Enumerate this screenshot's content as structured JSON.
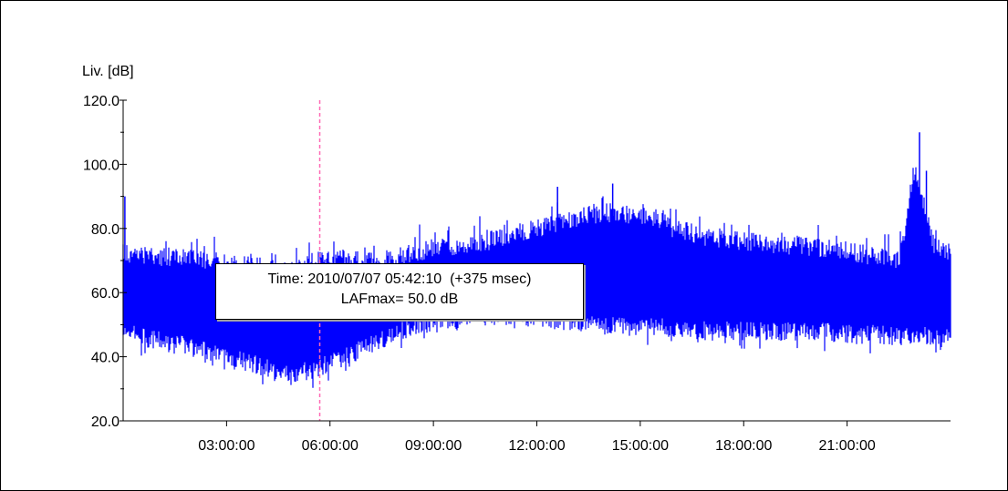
{
  "chart_data": {
    "type": "line",
    "title": "",
    "ylabel": "Liv. [dB]",
    "xlabel": "",
    "ylim": [
      20,
      120
    ],
    "yticks": [
      "20.0",
      "40.0",
      "60.0",
      "80.0",
      "100.0",
      "120.0"
    ],
    "xlim": [
      "00:00:00",
      "24:00:00"
    ],
    "xticks": [
      "03:00:00",
      "06:00:00",
      "09:00:00",
      "12:00:00",
      "15:00:00",
      "18:00:00",
      "21:00:00"
    ],
    "grid": false,
    "series": [
      {
        "color": "#0000ff",
        "style": "min-max envelope (dense trace)",
        "x_hours": [
          0.0,
          1.0,
          2.0,
          3.0,
          4.0,
          4.5,
          5.0,
          5.5,
          6.0,
          7.0,
          8.0,
          9.0,
          10.0,
          11.0,
          12.0,
          13.0,
          14.0,
          15.0,
          16.0,
          17.0,
          18.0,
          19.0,
          20.0,
          21.0,
          22.0,
          22.5,
          23.0,
          23.5,
          24.0
        ],
        "upper": [
          75,
          74,
          74,
          72,
          71,
          69,
          70,
          72,
          74,
          73,
          74,
          77,
          78,
          80,
          83,
          86,
          88,
          87,
          83,
          80,
          79,
          78,
          77,
          76,
          74,
          73,
          100,
          78,
          76
        ],
        "lower": [
          45,
          42,
          40,
          37,
          34,
          32,
          32,
          33,
          35,
          40,
          45,
          48,
          49,
          50,
          49,
          48,
          47,
          46,
          46,
          45,
          45,
          45,
          45,
          44,
          44,
          43,
          44,
          43,
          43
        ]
      }
    ],
    "peaks": [
      {
        "x_hours": 23.1,
        "y": 110
      },
      {
        "x_hours": 23.3,
        "y": 98
      },
      {
        "x_hours": 14.2,
        "y": 94
      },
      {
        "x_hours": 12.6,
        "y": 93
      },
      {
        "x_hours": 0.05,
        "y": 90
      }
    ],
    "cursor": {
      "x_time": "05:42:10",
      "color": "#ff69b4",
      "tooltip": {
        "line1": "Time: 2010/07/07 05:42:10  (+375 msec)",
        "line2": "LAFmax= 50.0 dB"
      }
    }
  }
}
